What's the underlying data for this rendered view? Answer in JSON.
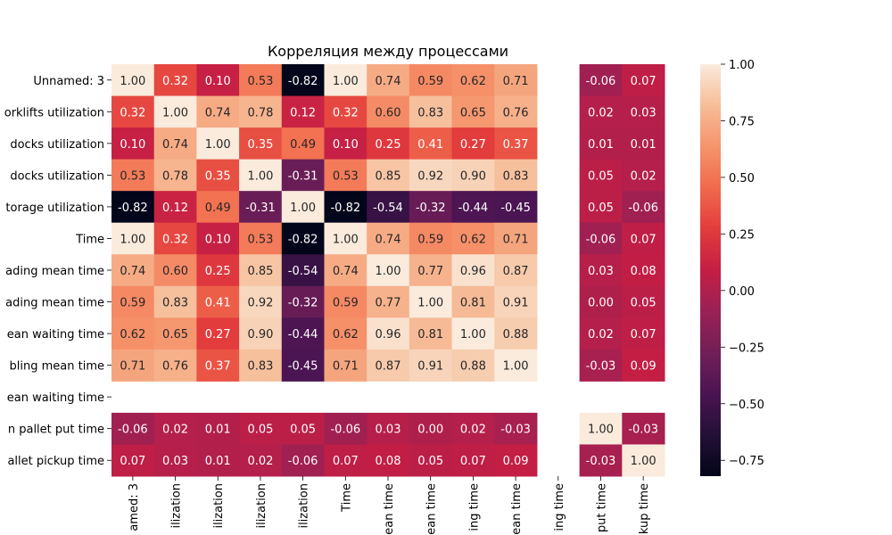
{
  "chart_data": {
    "type": "heatmap",
    "title": "Корреляция между процессами",
    "row_labels": [
      "Unnamed: 3",
      "orklifts utilization",
      "docks utilization",
      "docks utilization",
      "torage utilization",
      "Time",
      "ading mean time",
      "ading mean time",
      "ean waiting time",
      "bling mean time",
      "ean waiting time",
      "n pallet put time",
      "allet pickup time"
    ],
    "col_labels": [
      "amed: 3",
      "ilization",
      "ilization",
      "ilization",
      "ilization",
      "Time",
      "ean time",
      "ean time",
      "ing time",
      "ean time",
      "ing time",
      "put time",
      "kup time"
    ],
    "values": [
      [
        1.0,
        0.32,
        0.1,
        0.53,
        -0.82,
        1.0,
        0.74,
        0.59,
        0.62,
        0.71,
        null,
        -0.06,
        0.07
      ],
      [
        0.32,
        1.0,
        0.74,
        0.78,
        0.12,
        0.32,
        0.6,
        0.83,
        0.65,
        0.76,
        null,
        0.02,
        0.03
      ],
      [
        0.1,
        0.74,
        1.0,
        0.35,
        0.49,
        0.1,
        0.25,
        0.41,
        0.27,
        0.37,
        null,
        0.01,
        0.01
      ],
      [
        0.53,
        0.78,
        0.35,
        1.0,
        -0.31,
        0.53,
        0.85,
        0.92,
        0.9,
        0.83,
        null,
        0.05,
        0.02
      ],
      [
        -0.82,
        0.12,
        0.49,
        -0.31,
        1.0,
        -0.82,
        -0.54,
        -0.32,
        -0.44,
        -0.45,
        null,
        0.05,
        -0.06
      ],
      [
        1.0,
        0.32,
        0.1,
        0.53,
        -0.82,
        1.0,
        0.74,
        0.59,
        0.62,
        0.71,
        null,
        -0.06,
        0.07
      ],
      [
        0.74,
        0.6,
        0.25,
        0.85,
        -0.54,
        0.74,
        1.0,
        0.77,
        0.96,
        0.87,
        null,
        0.03,
        0.08
      ],
      [
        0.59,
        0.83,
        0.41,
        0.92,
        -0.32,
        0.59,
        0.77,
        1.0,
        0.81,
        0.91,
        null,
        0.0,
        0.05
      ],
      [
        0.62,
        0.65,
        0.27,
        0.9,
        -0.44,
        0.62,
        0.96,
        0.81,
        1.0,
        0.88,
        null,
        0.02,
        0.07
      ],
      [
        0.71,
        0.76,
        0.37,
        0.83,
        -0.45,
        0.71,
        0.87,
        0.91,
        0.88,
        1.0,
        null,
        -0.03,
        0.09
      ],
      [
        null,
        null,
        null,
        null,
        null,
        null,
        null,
        null,
        null,
        null,
        null,
        null,
        null
      ],
      [
        -0.06,
        0.02,
        0.01,
        0.05,
        0.05,
        -0.06,
        0.03,
        0.0,
        0.02,
        -0.03,
        null,
        1.0,
        -0.03
      ],
      [
        0.07,
        0.03,
        0.01,
        0.02,
        -0.06,
        0.07,
        0.08,
        0.05,
        0.07,
        0.09,
        null,
        -0.03,
        1.0
      ]
    ],
    "value_format": "2 decimals",
    "colormap": "rocket",
    "vmin": -0.82,
    "vmax": 1.0,
    "colorbar": {
      "ticks": [
        1.0,
        0.75,
        0.5,
        0.25,
        0.0,
        -0.25,
        -0.5,
        -0.75
      ],
      "tick_labels": [
        "1.00",
        "0.75",
        "0.50",
        "0.25",
        "0.00",
        "−0.25",
        "−0.50",
        "−0.75"
      ],
      "placement": "right"
    },
    "grid": false
  }
}
